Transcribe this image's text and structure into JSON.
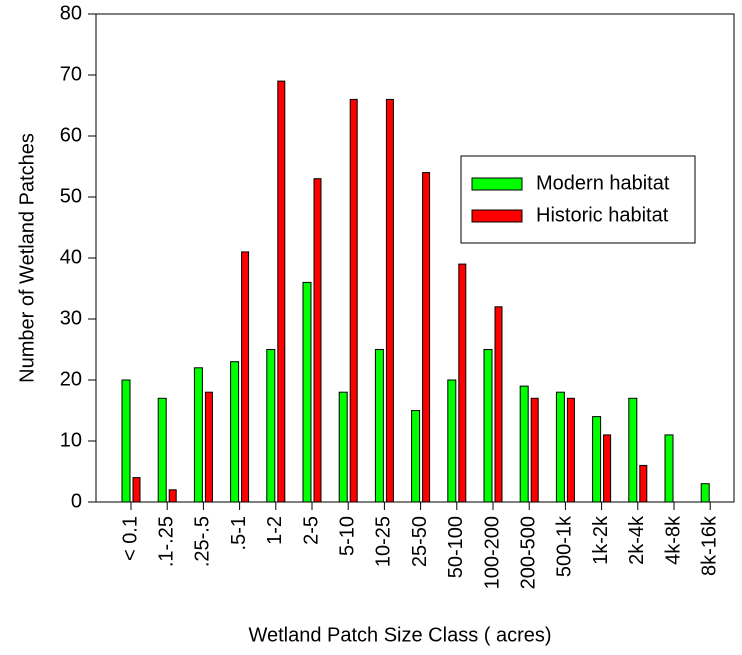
{
  "chart_data": {
    "type": "bar",
    "x_label": "Wetland Patch Size Class (   acres)",
    "y_label": "Number of Wetland Patches",
    "categories": [
      "< 0.1",
      ".1-.25",
      ".25-.5",
      ".5-1",
      "1-2",
      "2-5",
      "5-10",
      "10-25",
      "25-50",
      "50-100",
      "100-200",
      "200-500",
      "500-1k",
      "1k-2k",
      "2k-4k",
      "4k-8k",
      "8k-16k"
    ],
    "series": [
      {
        "name": "Modern habitat",
        "color": "#00ff00",
        "values": [
          20,
          17,
          22,
          23,
          25,
          36,
          18,
          25,
          15,
          20,
          25,
          19,
          18,
          14,
          17,
          11,
          3
        ]
      },
      {
        "name": "Historic habitat",
        "color": "#ff0000",
        "values": [
          4,
          2,
          18,
          41,
          69,
          53,
          66,
          66,
          54,
          39,
          32,
          17,
          17,
          11,
          6,
          0,
          0
        ]
      }
    ],
    "ylim": [
      0,
      80
    ],
    "yticks": [
      0,
      10,
      20,
      30,
      40,
      50,
      60,
      70,
      80
    ]
  }
}
